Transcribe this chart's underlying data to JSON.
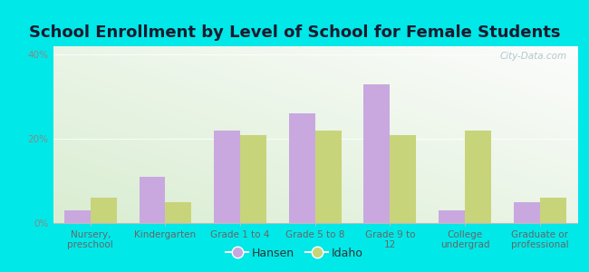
{
  "title": "School Enrollment by Level of School for Female Students",
  "categories": [
    "Nursery,\npreschool",
    "Kindergarten",
    "Grade 1 to 4",
    "Grade 5 to 8",
    "Grade 9 to\n12",
    "College\nundergrad",
    "Graduate or\nprofessional"
  ],
  "hansen_values": [
    3.0,
    11.0,
    22.0,
    26.0,
    33.0,
    3.0,
    5.0
  ],
  "idaho_values": [
    6.0,
    5.0,
    21.0,
    22.0,
    21.0,
    22.0,
    6.0
  ],
  "hansen_color": "#c9a8e0",
  "idaho_color": "#c8d47a",
  "background_color": "#00e8e8",
  "bar_width": 0.35,
  "ylim": [
    0,
    42
  ],
  "yticks": [
    0,
    20,
    40
  ],
  "ytick_labels": [
    "0%",
    "20%",
    "40%"
  ],
  "title_fontsize": 13,
  "tick_fontsize": 7.5,
  "legend_fontsize": 9,
  "watermark_text": "City-Data.com",
  "legend_labels": [
    "Hansen",
    "Idaho"
  ]
}
